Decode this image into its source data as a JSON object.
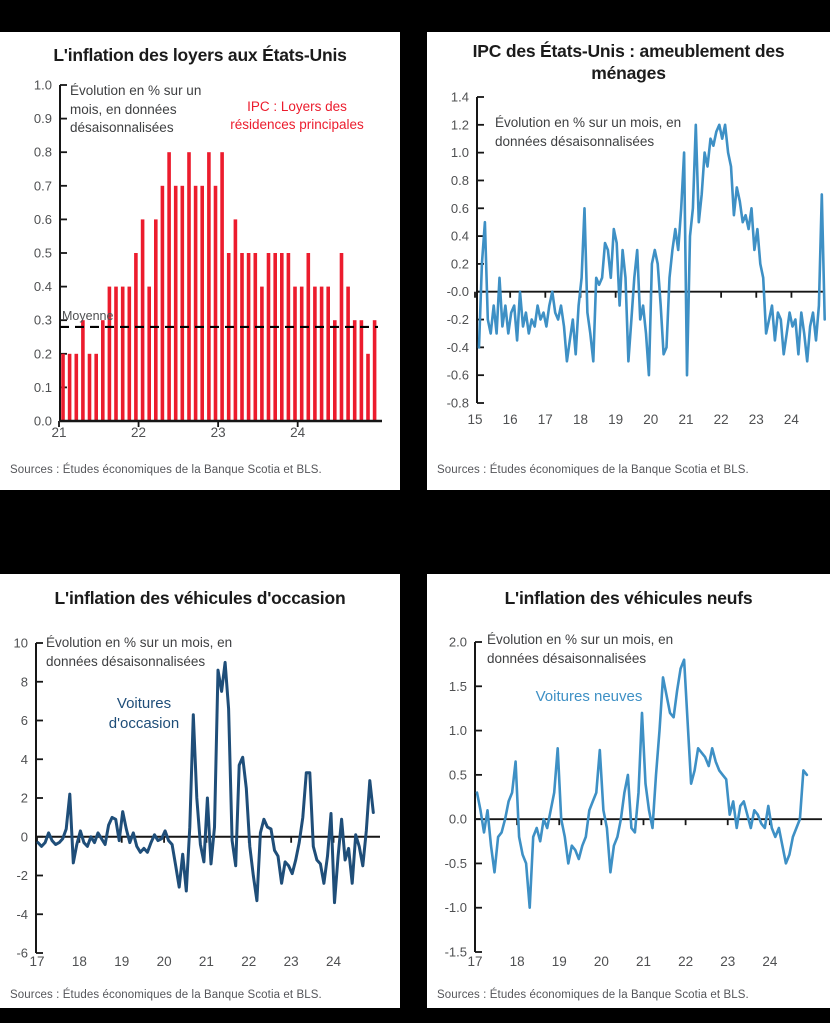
{
  "page": {
    "background": "#000000",
    "panel_background": "#ffffff"
  },
  "charts": [
    {
      "title": "L'inflation des loyers aux États-Unis",
      "annotation": "Évolution en % sur un mois, en données désaisonnalisées",
      "series_label": "IPC : Loyers des résidences principales",
      "mean_label": "Moyenne",
      "sources": "Sources : Études économiques de la Banque Scotia et BLS.",
      "chart_data": {
        "type": "bar",
        "color": "#ec1c2d",
        "start": "2021-01",
        "frequency": "monthly",
        "x_tick_labels": [
          "21",
          "22",
          "23",
          "24"
        ],
        "ylim": [
          0.0,
          1.0
        ],
        "y_tick_step": 0.1,
        "y_tick_decimals": 1,
        "mean_line": 0.28,
        "values": [
          0.2,
          0.2,
          0.2,
          0.3,
          0.2,
          0.2,
          0.3,
          0.4,
          0.4,
          0.4,
          0.4,
          0.5,
          0.6,
          0.4,
          0.6,
          0.7,
          0.8,
          0.7,
          0.7,
          0.8,
          0.7,
          0.7,
          0.8,
          0.7,
          0.8,
          0.5,
          0.6,
          0.5,
          0.5,
          0.5,
          0.4,
          0.5,
          0.5,
          0.5,
          0.5,
          0.4,
          0.4,
          0.5,
          0.4,
          0.4,
          0.4,
          0.3,
          0.5,
          0.4,
          0.3,
          0.3,
          0.2,
          0.3
        ]
      }
    },
    {
      "title": "IPC des États-Unis : ameublement des ménages",
      "annotation": "Évolution en % sur un mois, en données désaisonnalisées",
      "sources": "Sources : Études économiques de la Banque Scotia et BLS.",
      "chart_data": {
        "type": "line",
        "color": "#3e90c5",
        "start": "2015-01",
        "frequency": "monthly",
        "x_tick_labels": [
          "15",
          "16",
          "17",
          "18",
          "19",
          "20",
          "21",
          "22",
          "23",
          "24"
        ],
        "ylim": [
          -0.8,
          1.4
        ],
        "y_tick_step": 0.2,
        "y_tick_decimals": 1,
        "values": [
          -0.4,
          0.2,
          0.5,
          -0.2,
          -0.3,
          -0.1,
          -0.3,
          0.1,
          -0.25,
          -0.1,
          -0.3,
          -0.15,
          -0.1,
          -0.35,
          0.0,
          -0.25,
          -0.15,
          -0.3,
          -0.2,
          -0.25,
          -0.1,
          -0.2,
          -0.15,
          -0.25,
          -0.1,
          0.0,
          -0.15,
          -0.2,
          -0.1,
          -0.25,
          -0.5,
          -0.35,
          -0.2,
          -0.45,
          -0.1,
          0.1,
          0.6,
          -0.15,
          -0.3,
          -0.5,
          0.1,
          0.05,
          0.1,
          0.35,
          0.3,
          0.1,
          0.45,
          0.35,
          -0.1,
          0.3,
          0.1,
          -0.5,
          -0.2,
          0.1,
          0.3,
          -0.2,
          -0.1,
          -0.3,
          -0.6,
          0.2,
          0.3,
          0.2,
          -0.1,
          -0.45,
          -0.4,
          0.1,
          0.3,
          0.45,
          0.3,
          0.6,
          1.0,
          -0.6,
          0.4,
          0.6,
          1.2,
          0.5,
          0.7,
          1.0,
          0.9,
          1.1,
          1.05,
          1.15,
          1.2,
          1.1,
          1.2,
          1.0,
          0.9,
          0.55,
          0.75,
          0.65,
          0.5,
          0.55,
          0.45,
          0.6,
          0.3,
          0.45,
          0.2,
          0.1,
          -0.3,
          -0.2,
          -0.1,
          -0.35,
          -0.15,
          -0.2,
          -0.45,
          -0.3,
          -0.15,
          -0.25,
          -0.2,
          -0.45,
          -0.15,
          -0.3,
          -0.5,
          -0.25,
          -0.15,
          -0.35,
          -0.1,
          0.7,
          -0.2
        ]
      }
    },
    {
      "title": "L'inflation des véhicules d'occasion",
      "annotation": "Évolution en % sur un mois, en données désaisonnalisées",
      "series_label": "Voitures d'occasion",
      "sources": "Sources : Études économiques de la Banque Scotia et BLS.",
      "chart_data": {
        "type": "line",
        "color": "#1f4e79",
        "start": "2017-01",
        "frequency": "monthly",
        "x_tick_labels": [
          "17",
          "18",
          "19",
          "20",
          "21",
          "22",
          "23",
          "24"
        ],
        "ylim": [
          -6,
          10
        ],
        "y_tick_step": 2,
        "y_tick_decimals": 0,
        "values": [
          -0.3,
          -0.5,
          -0.3,
          0.2,
          -0.2,
          -0.4,
          -0.3,
          -0.1,
          0.4,
          2.2,
          -1.35,
          -0.4,
          0.3,
          -0.3,
          -0.5,
          0.0,
          -0.3,
          0.2,
          -0.1,
          -0.4,
          0.6,
          1.0,
          0.9,
          -0.2,
          1.3,
          0.4,
          -0.3,
          0.2,
          -0.5,
          -0.8,
          -0.6,
          -0.8,
          -0.3,
          0.1,
          -0.2,
          -0.1,
          0.3,
          -0.2,
          -0.4,
          -1.5,
          -2.6,
          -0.9,
          -2.8,
          0.5,
          6.3,
          2.0,
          -0.4,
          -1.3,
          2.0,
          -1.4,
          0.5,
          8.6,
          7.5,
          9.0,
          6.6,
          -0.2,
          -1.5,
          3.7,
          4.1,
          2.5,
          -0.5,
          -2.0,
          -3.3,
          0.2,
          0.9,
          0.5,
          0.4,
          -0.7,
          -1.0,
          -2.4,
          -1.3,
          -1.5,
          -1.9,
          -1.2,
          -0.3,
          1.0,
          3.3,
          3.3,
          -0.5,
          -1.2,
          -1.4,
          -2.4,
          -1.0,
          1.2,
          -3.4,
          -1.0,
          0.9,
          -1.2,
          -0.6,
          -2.4,
          0.1,
          -0.5,
          -1.5,
          0.3,
          2.9,
          1.25
        ]
      }
    },
    {
      "title": "L'inflation des véhicules neufs",
      "annotation": "Évolution en % sur un mois, en données désaisonnalisées",
      "series_label": "Voitures neuves",
      "sources": "Sources : Études économiques de la Banque Scotia et BLS.",
      "chart_data": {
        "type": "line",
        "color": "#3e90c5",
        "start": "2017-01",
        "frequency": "monthly",
        "x_tick_labels": [
          "17",
          "18",
          "19",
          "20",
          "21",
          "22",
          "23",
          "24"
        ],
        "ylim": [
          -1.5,
          2.0
        ],
        "y_tick_step": 0.5,
        "y_tick_decimals": 1,
        "values": [
          0.3,
          0.1,
          -0.15,
          0.1,
          -0.3,
          -0.6,
          -0.2,
          -0.15,
          0.0,
          0.2,
          0.3,
          0.65,
          -0.2,
          -0.4,
          -0.5,
          -1.0,
          -0.2,
          -0.1,
          -0.25,
          0.0,
          -0.1,
          0.1,
          0.3,
          0.8,
          0.0,
          -0.2,
          -0.5,
          -0.3,
          -0.35,
          -0.45,
          -0.3,
          -0.2,
          0.1,
          0.2,
          0.3,
          0.78,
          0.1,
          -0.1,
          -0.6,
          -0.3,
          -0.2,
          0.0,
          0.3,
          0.5,
          -0.1,
          -0.15,
          0.3,
          1.2,
          0.4,
          0.1,
          -0.1,
          0.5,
          1.0,
          1.6,
          1.4,
          1.2,
          1.15,
          1.45,
          1.7,
          1.8,
          1.1,
          0.4,
          0.55,
          0.8,
          0.75,
          0.7,
          0.6,
          0.8,
          0.65,
          0.55,
          0.5,
          0.45,
          0.05,
          0.2,
          -0.1,
          0.15,
          0.2,
          0.05,
          -0.1,
          0.1,
          0.05,
          -0.05,
          -0.1,
          0.15,
          -0.1,
          -0.2,
          -0.1,
          -0.3,
          -0.5,
          -0.4,
          -0.2,
          -0.1,
          0.0,
          0.55,
          0.5
        ]
      }
    }
  ]
}
